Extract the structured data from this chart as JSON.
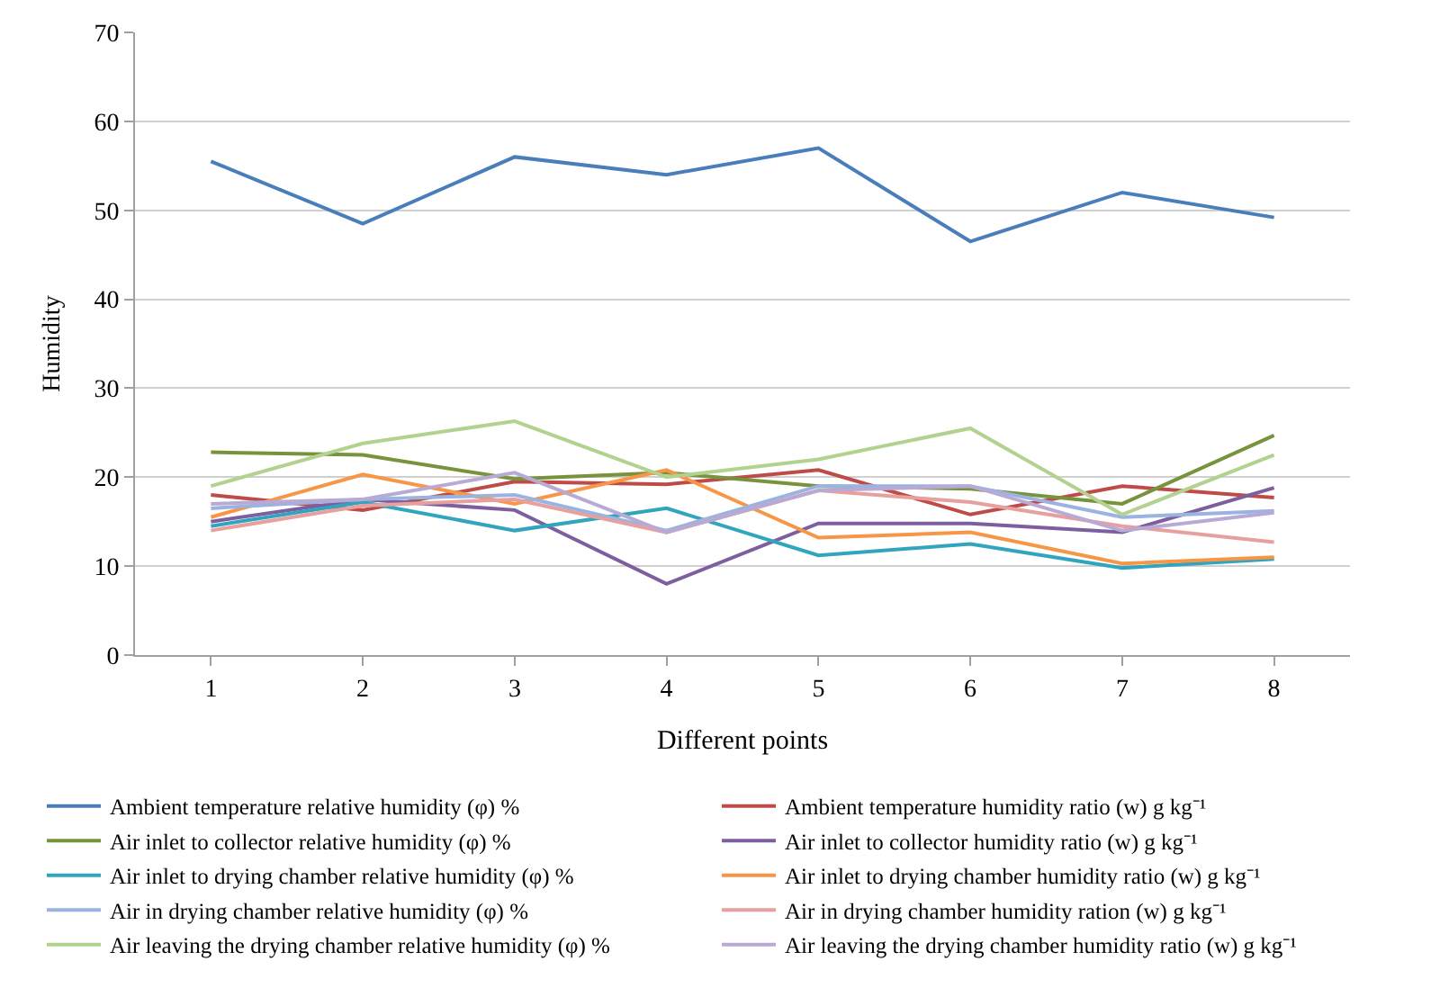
{
  "chart_data": {
    "type": "line",
    "xlabel": "Different points",
    "ylabel": "Humidity",
    "categories": [
      "1",
      "2",
      "3",
      "4",
      "5",
      "6",
      "7",
      "8"
    ],
    "ylim": [
      0,
      70
    ],
    "yticks": [
      0,
      10,
      20,
      30,
      40,
      50,
      60,
      70
    ],
    "grid": "y",
    "legend": "bottom",
    "marker": "none",
    "series": [
      {
        "name": "Ambient temperature relative humidity (φ) %",
        "color": "#4a7ebb",
        "values": [
          55.5,
          48.5,
          56,
          54,
          57,
          46.5,
          52,
          49.2
        ]
      },
      {
        "name": "Ambient temperature humidity ratio (w) g kg⁻¹",
        "color": "#be4b48",
        "values": [
          18,
          16.3,
          19.5,
          19.2,
          20.8,
          15.8,
          19,
          17.7
        ]
      },
      {
        "name": "Air inlet to collector relative humidity (φ) %",
        "color": "#77933c",
        "values": [
          22.8,
          22.5,
          19.8,
          20.5,
          19,
          18.7,
          17,
          24.7
        ]
      },
      {
        "name": "Air inlet to collector humidity ratio (w) g kg⁻¹",
        "color": "#7d5fa0",
        "values": [
          15,
          17.5,
          16.3,
          8,
          14.8,
          14.8,
          13.8,
          18.8
        ]
      },
      {
        "name": "Air inlet to drying chamber relative humidity (φ) %",
        "color": "#31a5bd",
        "values": [
          14.5,
          17.2,
          14,
          16.5,
          11.2,
          12.5,
          9.8,
          10.8
        ]
      },
      {
        "name": "Air inlet to drying chamber humidity ratio (w) g kg⁻¹",
        "color": "#f79646",
        "values": [
          15.5,
          20.3,
          17,
          20.8,
          13.2,
          13.8,
          10.3,
          11
        ]
      },
      {
        "name": "Air in drying chamber relative humidity (φ) %",
        "color": "#9bb3e0",
        "values": [
          16.5,
          17.5,
          18,
          14,
          19,
          19,
          15.5,
          16.2
        ]
      },
      {
        "name": "Air in drying chamber humidity ration (w) g kg⁻¹",
        "color": "#e6a09e",
        "values": [
          14,
          16.8,
          17.5,
          13.8,
          18.5,
          17.2,
          14.5,
          12.7
        ]
      },
      {
        "name": "Air leaving the drying chamber relative humidity (φ) %",
        "color": "#b3d18f",
        "values": [
          19,
          23.8,
          26.3,
          20,
          22,
          25.5,
          15.8,
          22.5
        ]
      },
      {
        "name": "Air leaving the drying chamber humidity ratio (w) g kg⁻¹",
        "color": "#b8aad4",
        "values": [
          17,
          17.5,
          20.5,
          13.8,
          18.5,
          19,
          14,
          16
        ]
      }
    ]
  }
}
